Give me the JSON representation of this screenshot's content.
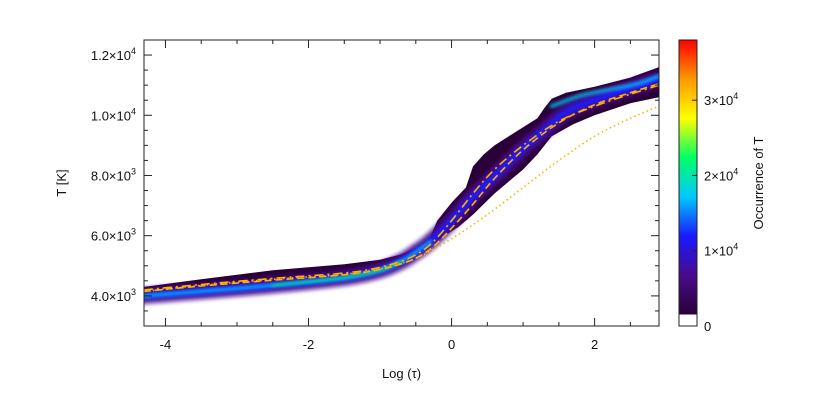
{
  "chart_data": {
    "type": "heatmap",
    "title": "",
    "xlabel": "Log (τ)",
    "ylabel": "T [K]",
    "xlim": [
      -4.3,
      2.9
    ],
    "ylim": [
      3000,
      12500
    ],
    "x_ticks": [
      {
        "value": -4,
        "label": "-4"
      },
      {
        "value": -2,
        "label": "-2"
      },
      {
        "value": 0,
        "label": "0"
      },
      {
        "value": 2,
        "label": "2"
      }
    ],
    "y_ticks": [
      {
        "value": 4000,
        "mantissa": "4.0",
        "exp": "3"
      },
      {
        "value": 6000,
        "mantissa": "6.0",
        "exp": "3"
      },
      {
        "value": 8000,
        "mantissa": "8.0",
        "exp": "3"
      },
      {
        "value": 10000,
        "mantissa": "1.0",
        "exp": "4"
      },
      {
        "value": 12000,
        "mantissa": "1.2",
        "exp": "4"
      }
    ],
    "colorbar": {
      "label": "Occurrence of T",
      "range": [
        0,
        38000
      ],
      "colormap": [
        "#ffffff",
        "#2a0038",
        "#4a0a8a",
        "#1a1aff",
        "#00c8ff",
        "#00ff66",
        "#ffff00",
        "#ff9900",
        "#ff0000"
      ],
      "ticks": [
        {
          "value": 0,
          "mantissa": "0",
          "exp": ""
        },
        {
          "value": 10000,
          "mantissa": "1",
          "exp": "4"
        },
        {
          "value": 20000,
          "mantissa": "2",
          "exp": "4"
        },
        {
          "value": 30000,
          "mantissa": "3",
          "exp": "4"
        }
      ]
    },
    "density_region": {
      "upper_edge": [
        [
          -4.3,
          4300
        ],
        [
          -3.5,
          4550
        ],
        [
          -2.5,
          4850
        ],
        [
          -1.5,
          5050
        ],
        [
          -1.0,
          5200
        ],
        [
          -0.7,
          5380
        ],
        [
          -0.5,
          5600
        ],
        [
          -0.3,
          5950
        ],
        [
          -0.2,
          6500
        ],
        [
          0.0,
          7100
        ],
        [
          0.2,
          7600
        ],
        [
          0.3,
          8300
        ],
        [
          0.45,
          8700
        ],
        [
          0.6,
          9000
        ],
        [
          0.8,
          9300
        ],
        [
          1.0,
          9600
        ],
        [
          1.2,
          9900
        ],
        [
          1.3,
          10250
        ],
        [
          1.4,
          10550
        ],
        [
          1.6,
          10750
        ],
        [
          2.0,
          10950
        ],
        [
          2.5,
          11250
        ],
        [
          2.9,
          11600
        ]
      ],
      "lower_edge": [
        [
          2.9,
          10600
        ],
        [
          2.5,
          10400
        ],
        [
          2.0,
          10000
        ],
        [
          1.7,
          9700
        ],
        [
          1.4,
          9300
        ],
        [
          1.2,
          8700
        ],
        [
          1.0,
          8200
        ],
        [
          0.6,
          7400
        ],
        [
          0.3,
          6700
        ],
        [
          0.1,
          6300
        ],
        [
          -0.1,
          6000
        ],
        [
          -0.4,
          5500
        ],
        [
          -0.7,
          5000
        ],
        [
          -1.2,
          4650
        ],
        [
          -2.0,
          4350
        ],
        [
          -3.0,
          4150
        ],
        [
          -3.8,
          4000
        ],
        [
          -4.3,
          3950
        ]
      ],
      "core_ridge": [
        [
          -4.3,
          4000
        ],
        [
          -3.5,
          4150
        ],
        [
          -2.5,
          4350
        ],
        [
          -1.5,
          4600
        ],
        [
          -1.0,
          4850
        ],
        [
          -0.7,
          5150
        ],
        [
          -0.5,
          5450
        ],
        [
          -0.3,
          5800
        ],
        [
          0.0,
          6500
        ],
        [
          0.3,
          7300
        ],
        [
          0.7,
          8200
        ],
        [
          1.0,
          8900
        ],
        [
          1.3,
          9500
        ],
        [
          1.6,
          10100
        ],
        [
          2.0,
          10500
        ],
        [
          2.5,
          10900
        ],
        [
          2.9,
          11200
        ]
      ],
      "upper_ridge": [
        [
          1.4,
          10300
        ],
        [
          1.8,
          10650
        ],
        [
          2.2,
          10850
        ],
        [
          2.6,
          11050
        ],
        [
          2.9,
          11300
        ]
      ]
    },
    "series": [
      {
        "style": "dash-dot",
        "color": "#ffb300",
        "x": [
          -4.3,
          -3.5,
          -2.5,
          -1.5,
          -1.0,
          -0.6,
          -0.3,
          0.0,
          0.3,
          0.6,
          1.0,
          1.5,
          2.0,
          2.5,
          2.9
        ],
        "y": [
          4200,
          4380,
          4580,
          4760,
          4950,
          5250,
          5700,
          6500,
          7400,
          8200,
          9000,
          9800,
          10300,
          10700,
          11000
        ]
      },
      {
        "style": "dashed",
        "color": "#ffb300",
        "x": [
          -4.3,
          -3.5,
          -2.5,
          -1.5,
          -1.0,
          -0.6,
          -0.3,
          0.0,
          0.3,
          0.6,
          1.0,
          1.5,
          2.0,
          2.5,
          2.9
        ],
        "y": [
          4150,
          4330,
          4520,
          4700,
          4880,
          5150,
          5550,
          6250,
          7050,
          7900,
          8850,
          9750,
          10350,
          10750,
          11050
        ]
      },
      {
        "style": "dotted",
        "color": "#ffb300",
        "x": [
          -4.3,
          -3.5,
          -2.5,
          -1.5,
          -1.0,
          -0.5,
          0.0,
          0.5,
          1.0,
          1.5,
          2.0,
          2.5,
          2.9
        ],
        "y": [
          4150,
          4350,
          4550,
          4720,
          4900,
          5250,
          5900,
          6700,
          7600,
          8500,
          9300,
          9900,
          10300
        ]
      }
    ]
  }
}
